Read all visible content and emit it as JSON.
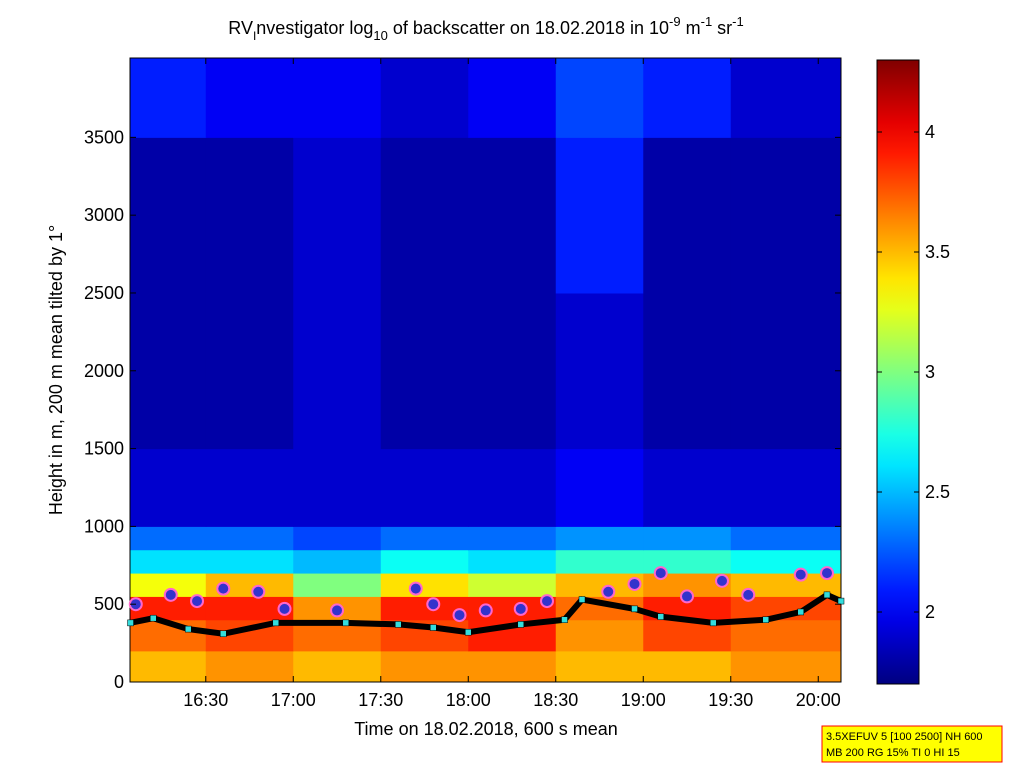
{
  "chart_data": {
    "type": "heatmap",
    "title": [
      "RV",
      "I",
      "nvestigator log",
      "10",
      " of backscatter on 18.02.2018 in 10",
      "-9",
      " m",
      "-1",
      " sr",
      "-1"
    ],
    "xlabel": "Time on 18.02.2018, 600 s mean",
    "ylabel": "Height in m, 200 m mean tilted by 1°",
    "xlim": [
      16.067,
      20.13
    ],
    "xticks": [
      {
        "value": 16.5,
        "label": "16:30"
      },
      {
        "value": 17,
        "label": "17:00"
      },
      {
        "value": 17.5,
        "label": "17:30"
      },
      {
        "value": 18,
        "label": "18:00"
      },
      {
        "value": 18.5,
        "label": "18:30"
      },
      {
        "value": 19,
        "label": "19:00"
      },
      {
        "value": 19.5,
        "label": "19:30"
      },
      {
        "value": 20,
        "label": "20:00"
      }
    ],
    "ylim": [
      0,
      4010
    ],
    "yticks": [
      0,
      500,
      1000,
      1500,
      2000,
      2500,
      3000,
      3500
    ],
    "colormap": "jet",
    "clim": [
      1.7,
      4.3
    ],
    "cticks": [
      2,
      2.5,
      3,
      3.5,
      4
    ],
    "x_edges": [
      16.067,
      16.5,
      17,
      17.5,
      18,
      18.5,
      19,
      19.5,
      20.13
    ],
    "y_edges": [
      0,
      200,
      400,
      550,
      700,
      850,
      1000,
      1500,
      2500,
      3500,
      4010
    ],
    "values": [
      [
        3.5,
        3.6,
        3.5,
        3.6,
        3.6,
        3.5,
        3.5,
        3.6
      ],
      [
        3.7,
        3.8,
        3.7,
        3.8,
        3.9,
        3.6,
        3.8,
        3.7
      ],
      [
        3.9,
        3.9,
        3.6,
        3.9,
        3.9,
        3.7,
        3.9,
        3.8
      ],
      [
        3.3,
        3.5,
        3.0,
        3.4,
        3.2,
        3.5,
        3.6,
        3.5
      ],
      [
        2.6,
        2.6,
        2.5,
        2.7,
        2.6,
        2.8,
        2.8,
        2.7
      ],
      [
        2.3,
        2.3,
        2.2,
        2.3,
        2.3,
        2.4,
        2.4,
        2.3
      ],
      [
        1.9,
        1.9,
        1.9,
        1.9,
        1.9,
        2.0,
        1.9,
        1.9
      ],
      [
        1.8,
        1.8,
        1.9,
        1.8,
        1.8,
        1.9,
        1.8,
        1.8
      ],
      [
        1.8,
        1.8,
        1.9,
        1.8,
        1.8,
        2.1,
        1.8,
        1.8
      ],
      [
        2.1,
        2.0,
        2.0,
        1.9,
        2.0,
        2.2,
        2.1,
        1.9
      ]
    ],
    "line": {
      "color": "#000000",
      "x": [
        16.07,
        16.2,
        16.4,
        16.6,
        16.9,
        17.3,
        17.6,
        17.8,
        18.0,
        18.3,
        18.55,
        18.65,
        18.95,
        19.1,
        19.4,
        19.7,
        19.9,
        20.05,
        20.13
      ],
      "values": [
        380,
        410,
        340,
        310,
        380,
        380,
        370,
        350,
        320,
        370,
        400,
        530,
        470,
        420,
        380,
        400,
        450,
        560,
        520
      ]
    },
    "points": {
      "color": "#3333cc",
      "x": [
        16.1,
        16.3,
        16.45,
        16.6,
        16.8,
        16.95,
        17.25,
        17.7,
        17.8,
        17.95,
        18.1,
        18.3,
        18.45,
        18.8,
        18.95,
        19.1,
        19.25,
        19.45,
        19.6,
        19.9,
        20.05
      ],
      "values": [
        500,
        560,
        520,
        600,
        580,
        470,
        460,
        600,
        500,
        430,
        460,
        470,
        520,
        580,
        630,
        700,
        550,
        650,
        560,
        690,
        700
      ]
    },
    "note": [
      "3.5XEFUV 5 [100 2500] NH 600",
      "MB 200 RG 15% TI 0 HI 15"
    ]
  }
}
